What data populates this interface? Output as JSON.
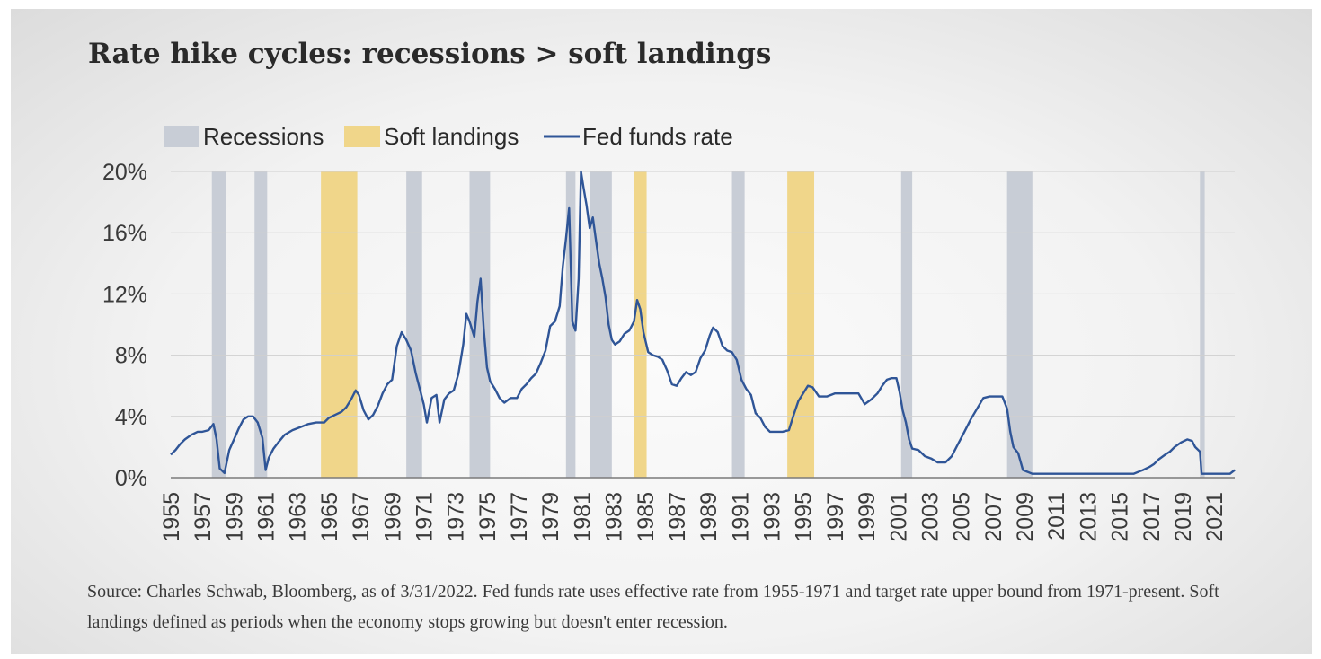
{
  "title": "Rate hike cycles: recessions > soft landings",
  "source": "Source: Charles Schwab, Bloomberg, as of 3/31/2022. Fed funds rate uses effective rate from 1955-1971 and target rate upper bound from 1971-present. Soft landings defined as periods when the economy stops growing but doesn't enter recession.",
  "colors": {
    "recession": "#c8cdd6",
    "soft_landing": "#f0d68a",
    "line": "#2f5597",
    "grid": "#cfcfcf",
    "axis": "#7a7a7a"
  },
  "chart_data": {
    "type": "line",
    "title": "Rate hike cycles: recessions > soft landings",
    "legend": [
      "Recessions",
      "Soft landings",
      "Fed funds rate"
    ],
    "legend_position": "top-left",
    "xlim": [
      1955,
      2022.3
    ],
    "ylim": [
      0,
      20
    ],
    "y_ticks": [
      0,
      4,
      8,
      12,
      16,
      20
    ],
    "y_tick_labels": [
      "0%",
      "4%",
      "8%",
      "12%",
      "16%",
      "20%"
    ],
    "x_ticks": [
      1955,
      1957,
      1959,
      1961,
      1963,
      1965,
      1967,
      1969,
      1971,
      1973,
      1975,
      1977,
      1979,
      1981,
      1983,
      1985,
      1987,
      1989,
      1991,
      1993,
      1995,
      1997,
      1999,
      2001,
      2003,
      2005,
      2007,
      2009,
      2011,
      2013,
      2015,
      2017,
      2019,
      2021
    ],
    "grid": "horizontal",
    "recessions": [
      [
        1957.6,
        1958.5
      ],
      [
        1960.3,
        1961.1
      ],
      [
        1969.9,
        1970.9
      ],
      [
        1973.9,
        1975.2
      ],
      [
        1980.0,
        1980.6
      ],
      [
        1981.5,
        1982.9
      ],
      [
        1990.5,
        1991.3
      ],
      [
        2001.2,
        2001.9
      ],
      [
        2007.9,
        2009.5
      ],
      [
        2020.1,
        2020.4
      ]
    ],
    "soft_landings": [
      [
        1964.5,
        1966.8
      ],
      [
        1984.3,
        1985.1
      ],
      [
        1994.0,
        1995.7
      ]
    ],
    "series": [
      {
        "name": "Fed funds rate",
        "x": [
          1955.0,
          1955.3,
          1955.6,
          1955.9,
          1956.3,
          1956.7,
          1957.0,
          1957.4,
          1957.7,
          1957.9,
          1958.1,
          1958.4,
          1958.7,
          1959.0,
          1959.3,
          1959.6,
          1959.9,
          1960.2,
          1960.5,
          1960.8,
          1961.0,
          1961.2,
          1961.5,
          1961.8,
          1962.2,
          1962.7,
          1963.2,
          1963.7,
          1964.2,
          1964.7,
          1965.0,
          1965.4,
          1965.8,
          1966.1,
          1966.4,
          1966.7,
          1966.9,
          1967.2,
          1967.5,
          1967.8,
          1968.1,
          1968.4,
          1968.7,
          1969.0,
          1969.3,
          1969.6,
          1969.9,
          1970.2,
          1970.5,
          1970.8,
          1971.0,
          1971.2,
          1971.5,
          1971.8,
          1972.0,
          1972.3,
          1972.6,
          1972.9,
          1973.2,
          1973.5,
          1973.7,
          1973.9,
          1974.2,
          1974.4,
          1974.6,
          1974.8,
          1975.0,
          1975.2,
          1975.5,
          1975.8,
          1976.1,
          1976.5,
          1976.9,
          1977.2,
          1977.5,
          1977.8,
          1978.1,
          1978.4,
          1978.7,
          1979.0,
          1979.3,
          1979.6,
          1979.8,
          1980.0,
          1980.2,
          1980.4,
          1980.6,
          1980.8,
          1980.95,
          1981.1,
          1981.3,
          1981.5,
          1981.7,
          1981.9,
          1982.1,
          1982.3,
          1982.5,
          1982.7,
          1982.9,
          1983.1,
          1983.4,
          1983.7,
          1984.0,
          1984.3,
          1984.5,
          1984.7,
          1984.9,
          1985.2,
          1985.5,
          1985.8,
          1986.1,
          1986.4,
          1986.7,
          1987.0,
          1987.3,
          1987.6,
          1987.9,
          1988.2,
          1988.5,
          1988.8,
          1989.1,
          1989.3,
          1989.6,
          1989.9,
          1990.2,
          1990.5,
          1990.8,
          1991.1,
          1991.4,
          1991.7,
          1992.0,
          1992.3,
          1992.6,
          1992.9,
          1993.3,
          1993.7,
          1994.1,
          1994.4,
          1994.7,
          1995.0,
          1995.3,
          1995.6,
          1996.0,
          1996.5,
          1997.0,
          1997.5,
          1998.0,
          1998.5,
          1998.9,
          1999.3,
          1999.7,
          2000.0,
          2000.3,
          2000.6,
          2000.9,
          2001.1,
          2001.3,
          2001.5,
          2001.7,
          2001.9,
          2002.3,
          2002.7,
          2003.1,
          2003.5,
          2004.0,
          2004.4,
          2004.8,
          2005.2,
          2005.6,
          2006.0,
          2006.4,
          2006.8,
          2007.2,
          2007.6,
          2007.9,
          2008.1,
          2008.3,
          2008.6,
          2008.9,
          2009.5,
          2011.0,
          2013.0,
          2015.0,
          2015.9,
          2016.5,
          2016.9,
          2017.2,
          2017.5,
          2017.9,
          2018.2,
          2018.5,
          2018.9,
          2019.3,
          2019.6,
          2019.8,
          2020.1,
          2020.2,
          2021.0,
          2022.0,
          2022.3
        ],
        "y": [
          1.5,
          1.8,
          2.2,
          2.5,
          2.8,
          3.0,
          3.0,
          3.1,
          3.5,
          2.5,
          0.6,
          0.3,
          1.8,
          2.5,
          3.2,
          3.8,
          4.0,
          4.0,
          3.6,
          2.6,
          0.5,
          1.3,
          1.9,
          2.3,
          2.8,
          3.1,
          3.3,
          3.5,
          3.6,
          3.6,
          3.9,
          4.1,
          4.3,
          4.6,
          5.1,
          5.7,
          5.4,
          4.4,
          3.8,
          4.1,
          4.7,
          5.5,
          6.1,
          6.4,
          8.6,
          9.5,
          9.0,
          8.3,
          6.8,
          5.6,
          4.8,
          3.6,
          5.2,
          5.4,
          3.6,
          5.1,
          5.5,
          5.7,
          6.8,
          8.7,
          10.7,
          10.2,
          9.2,
          11.5,
          13.0,
          9.7,
          7.2,
          6.3,
          5.8,
          5.2,
          4.9,
          5.2,
          5.2,
          5.8,
          6.1,
          6.5,
          6.8,
          7.5,
          8.3,
          9.9,
          10.2,
          11.2,
          13.8,
          15.6,
          17.6,
          10.2,
          9.6,
          13.0,
          20.0,
          19.0,
          17.8,
          16.3,
          17.0,
          15.5,
          14.0,
          13.0,
          11.8,
          10.0,
          9.0,
          8.7,
          8.9,
          9.4,
          9.6,
          10.2,
          11.6,
          11.0,
          9.5,
          8.2,
          8.0,
          7.9,
          7.7,
          7.0,
          6.1,
          6.0,
          6.5,
          6.9,
          6.7,
          6.9,
          7.8,
          8.3,
          9.3,
          9.8,
          9.5,
          8.6,
          8.3,
          8.2,
          7.7,
          6.4,
          5.8,
          5.4,
          4.2,
          3.9,
          3.3,
          3.0,
          3.0,
          3.0,
          3.1,
          4.1,
          5.0,
          5.5,
          6.0,
          5.9,
          5.3,
          5.3,
          5.5,
          5.5,
          5.5,
          5.5,
          4.8,
          5.1,
          5.5,
          6.0,
          6.4,
          6.5,
          6.5,
          5.6,
          4.4,
          3.6,
          2.5,
          1.9,
          1.8,
          1.4,
          1.25,
          1.0,
          1.0,
          1.4,
          2.2,
          3.0,
          3.8,
          4.5,
          5.2,
          5.3,
          5.3,
          5.3,
          4.5,
          3.0,
          2.0,
          1.6,
          0.5,
          0.25,
          0.25,
          0.25,
          0.25,
          0.25,
          0.5,
          0.7,
          0.9,
          1.2,
          1.5,
          1.7,
          2.0,
          2.3,
          2.5,
          2.4,
          2.0,
          1.7,
          0.25,
          0.25,
          0.25,
          0.5
        ]
      }
    ]
  }
}
